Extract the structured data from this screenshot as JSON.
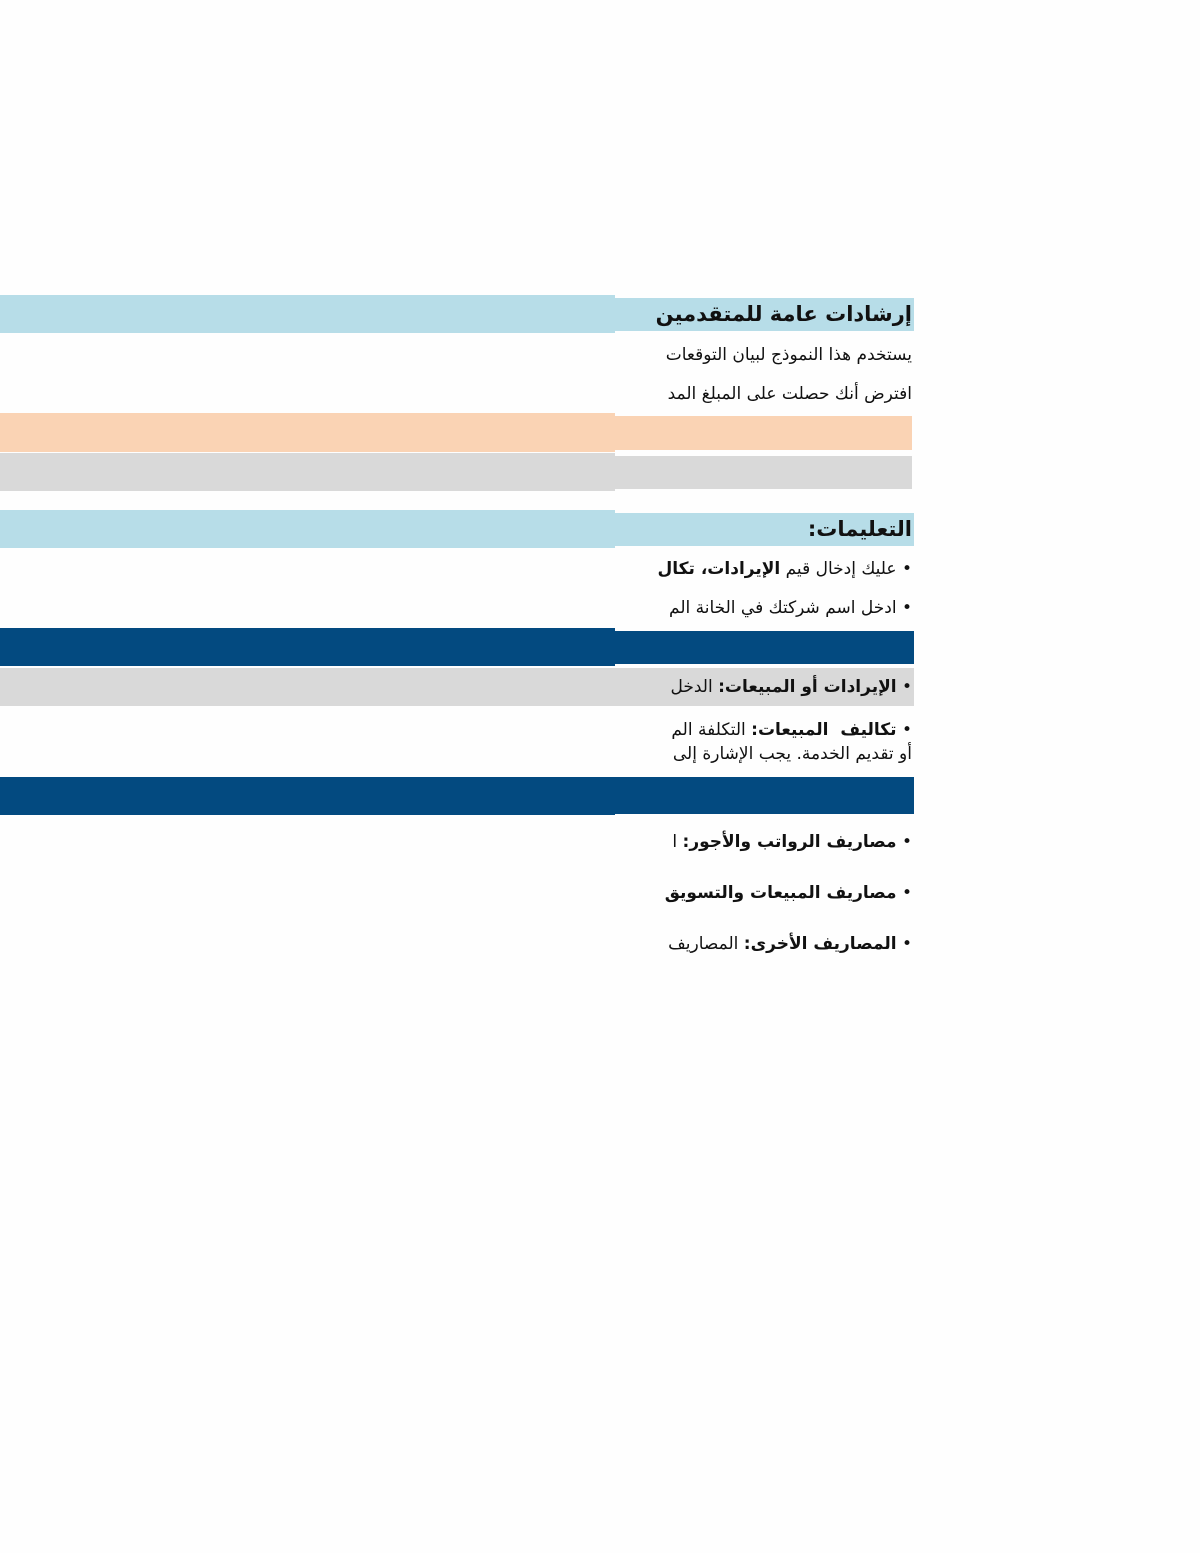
{
  "colors": {
    "light_blue": "#b7dde8",
    "orange": "#fad3b4",
    "gray": "#d9d9d9",
    "dark_blue": "#034a80"
  },
  "general": {
    "title": "إرشادات عامة للمتقدمين",
    "line1": "يستخدم هذا النموذج لبيان التوقعات",
    "line2": "افترض أنك حصلت على المبلغ المد"
  },
  "instructions": {
    "title": "التعليمات:",
    "item1_prefix": "• عليك إدخال قيم ",
    "item1_bold": "الإيرادات، تكال",
    "item2": "• ادخل اسم شركتك في الخانة الم"
  },
  "definitions": [
    {
      "bullet": "• ",
      "term": "الإيرادات أو المبيعات:",
      "text": " الدخل"
    },
    {
      "bullet": "• ",
      "term": "تكاليف  المبيعات:",
      "text": " التكلفة الم",
      "line2": "أو تقديم الخدمة. يجب الإشارة إلى"
    },
    {
      "bullet": "• ",
      "term": "مصاريف الرواتب والأجور:",
      "text": " ا"
    },
    {
      "bullet": "• ",
      "term": "مصاريف المبيعات والتسويق",
      "text": ""
    },
    {
      "bullet": "• ",
      "term": "المصاريف الأخرى:",
      "text": " المصاريف"
    }
  ]
}
